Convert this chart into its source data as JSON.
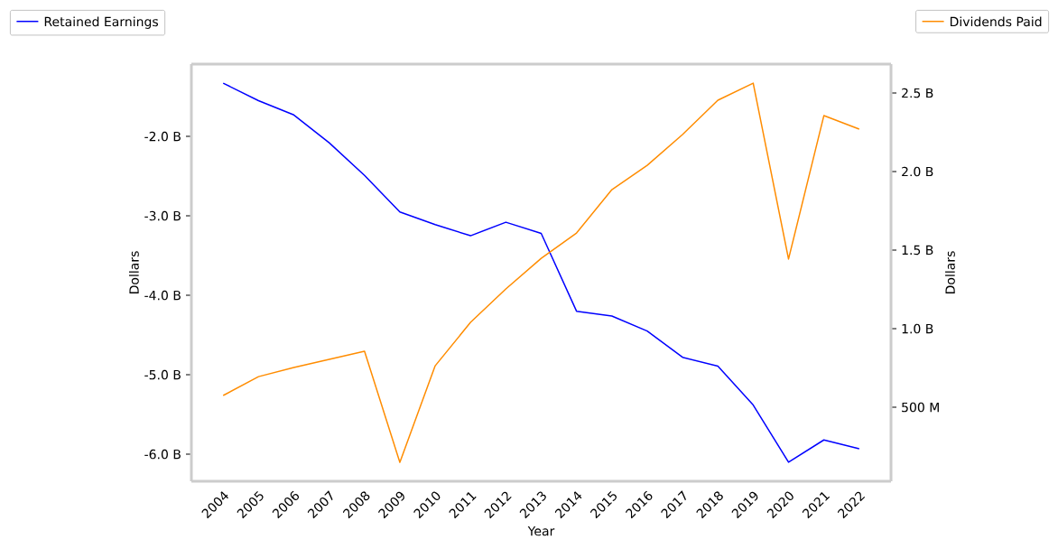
{
  "chart_data": {
    "type": "line",
    "xlabel": "Year",
    "ylabel": "Dollars",
    "y2label": "Dollars",
    "categories": [
      "2004",
      "2005",
      "2006",
      "2007",
      "2008",
      "2009",
      "2010",
      "2011",
      "2012",
      "2013",
      "2014",
      "2015",
      "2016",
      "2017",
      "2018",
      "2019",
      "2020",
      "2021",
      "2022"
    ],
    "series": [
      {
        "name": "Retained Earnings",
        "color": "#0000ff",
        "values": [
          -1.33,
          -1.55,
          -1.73,
          -2.08,
          -2.49,
          -2.95,
          -3.11,
          -3.25,
          -3.08,
          -3.22,
          -4.2,
          -4.26,
          -4.45,
          -4.78,
          -4.89,
          -5.38,
          -6.1,
          -5.82,
          -5.93
        ]
      },
      {
        "name": "Dividends Paid",
        "color": "#ff8c00",
        "axis": "y2",
        "values": [
          575000000,
          695000000,
          753000000,
          805000000,
          856000000,
          149000000,
          764000000,
          1040000000,
          1253000000,
          1448000000,
          1609000000,
          1885000000,
          2040000000,
          2236000000,
          2454000000,
          2563000000,
          1443000000,
          2356000000,
          2270000000
        ]
      }
    ],
    "ylim": [
      -6.34,
      -1.09
    ],
    "yticks": [
      {
        "value": -6,
        "label": "-6.0 B"
      },
      {
        "value": -5,
        "label": "-5.0 B"
      },
      {
        "value": -4,
        "label": "-4.0 B"
      },
      {
        "value": -3,
        "label": "-3.0 B"
      },
      {
        "value": -2,
        "label": "-2.0 B"
      }
    ],
    "y2lim": [
      29000000,
      2684000000
    ],
    "y2ticks": [
      {
        "value": 500000000,
        "label": "500 M"
      },
      {
        "value": 1000000000,
        "label": "1.0 B"
      },
      {
        "value": 1500000000,
        "label": "1.5 B"
      },
      {
        "value": 2000000000,
        "label": "2.0 B"
      },
      {
        "value": 2500000000,
        "label": "2.5 B"
      }
    ],
    "grid": false,
    "legend": "top",
    "marker": "none",
    "line_style": "solid"
  }
}
